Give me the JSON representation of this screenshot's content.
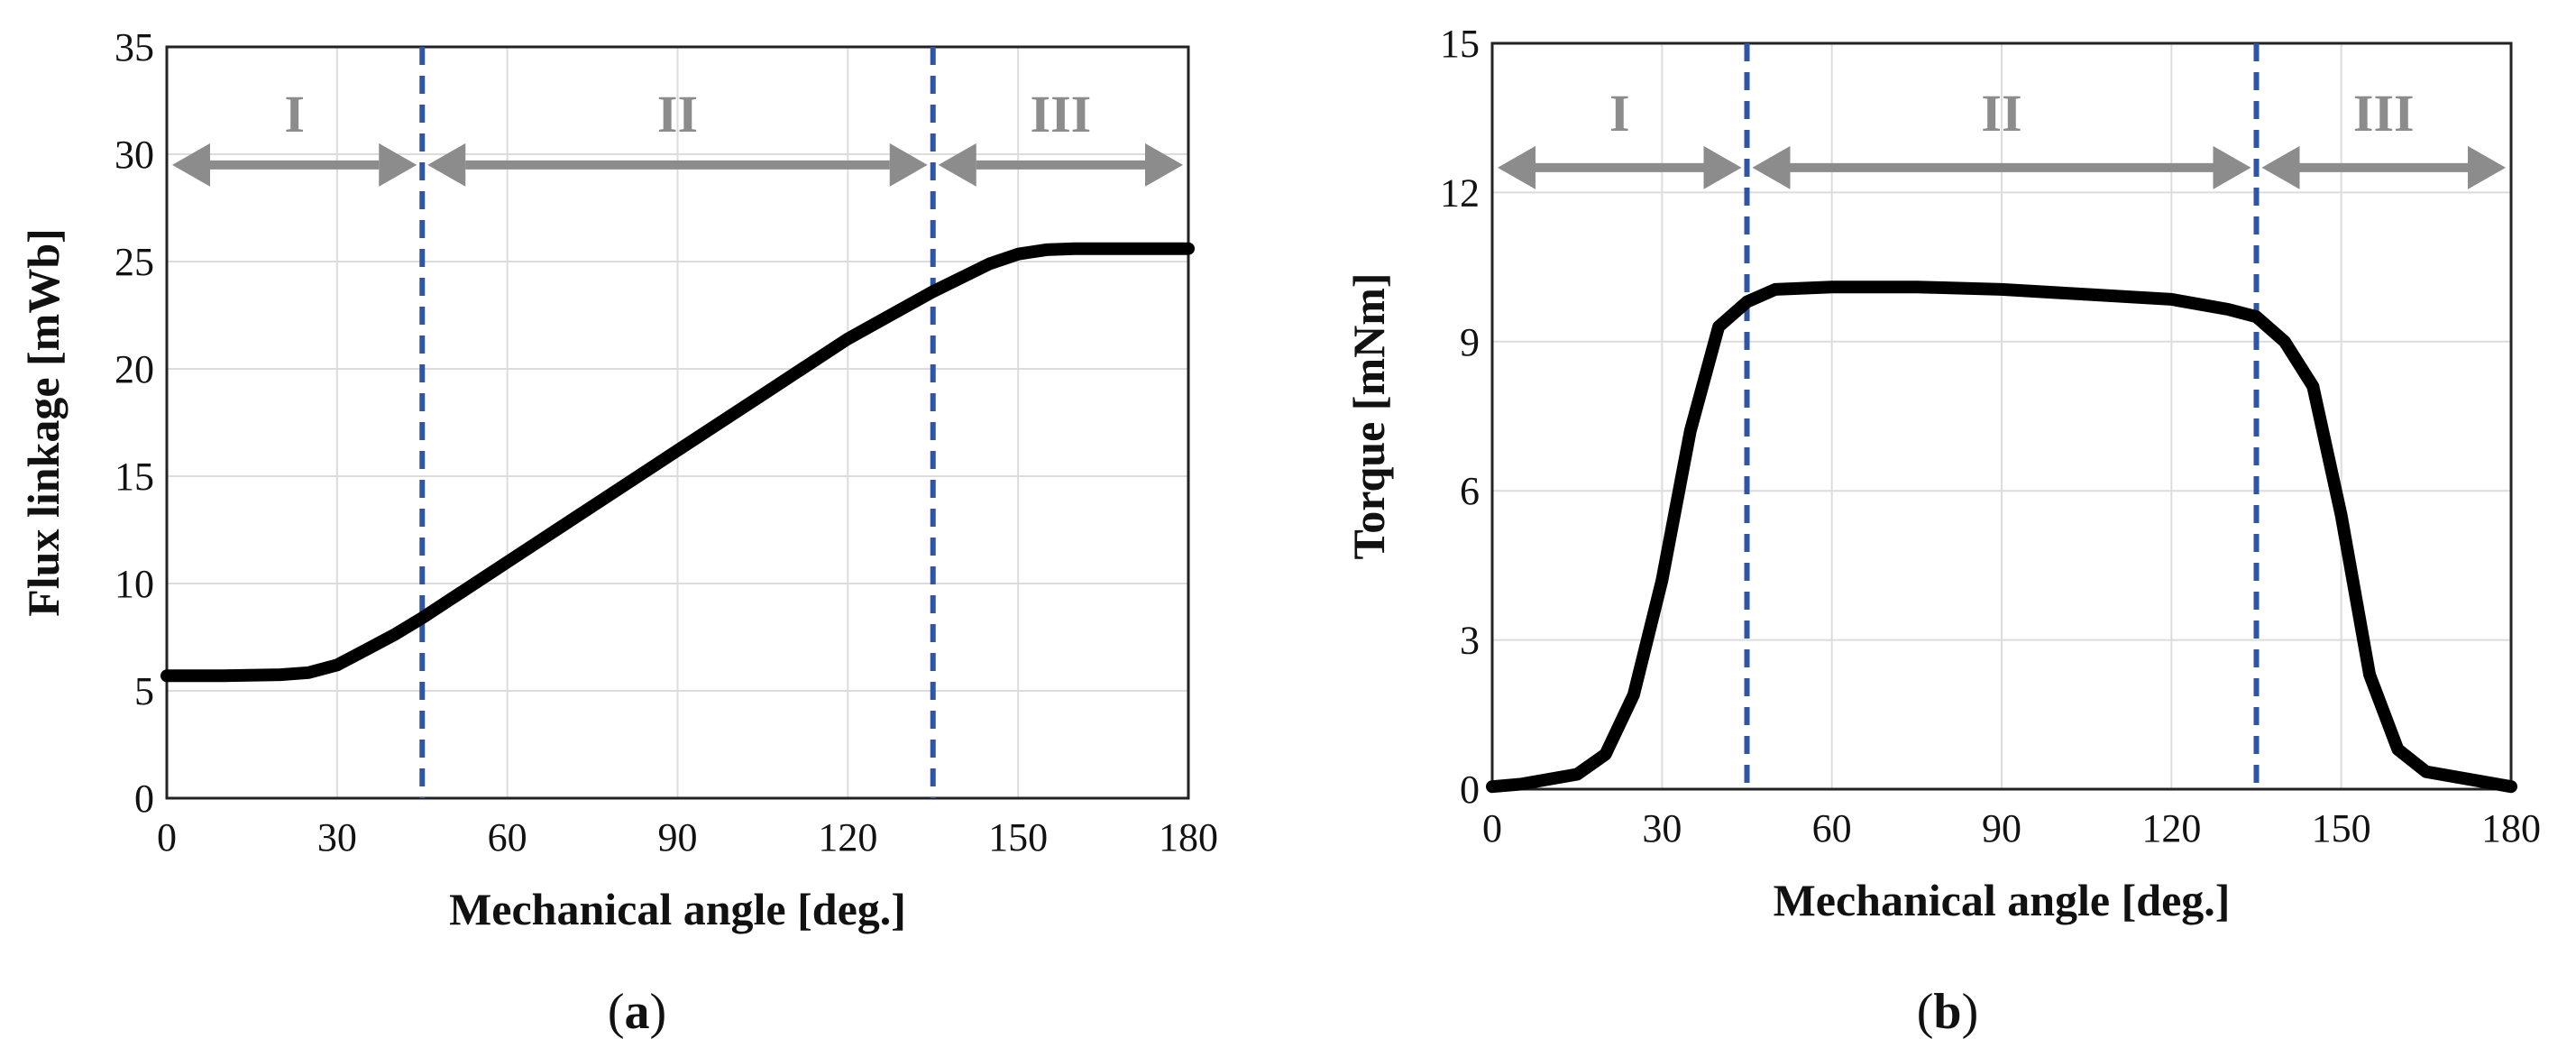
{
  "chart_data": [
    {
      "type": "line",
      "caption": "(a)",
      "caption_letter": "a",
      "xlabel": "Mechanical angle [deg.]",
      "ylabel": "Flux linkage [mWb]",
      "xlim": [
        0,
        180
      ],
      "ylim": [
        0,
        35
      ],
      "xticks": [
        0,
        30,
        60,
        90,
        120,
        150,
        180
      ],
      "yticks": [
        0,
        5,
        10,
        15,
        20,
        25,
        30,
        35
      ],
      "region_boundaries": [
        45,
        135
      ],
      "regions": [
        {
          "label": "I",
          "from": 0,
          "to": 45
        },
        {
          "label": "II",
          "from": 45,
          "to": 135
        },
        {
          "label": "III",
          "from": 135,
          "to": 180
        }
      ],
      "arrow_y": 29.5,
      "region_label_y": 31.9,
      "series": [
        {
          "name": "Flux linkage",
          "x": [
            0,
            10,
            20,
            25,
            30,
            35,
            40,
            45,
            60,
            75,
            90,
            105,
            120,
            135,
            145,
            150,
            155,
            160,
            170,
            180
          ],
          "y": [
            5.7,
            5.7,
            5.75,
            5.85,
            6.2,
            6.9,
            7.6,
            8.4,
            11.0,
            13.6,
            16.2,
            18.8,
            21.4,
            23.6,
            24.9,
            25.35,
            25.55,
            25.6,
            25.6,
            25.6
          ]
        }
      ]
    },
    {
      "type": "line",
      "caption": "(b)",
      "caption_letter": "b",
      "xlabel": "Mechanical angle [deg.]",
      "ylabel": "Torque [mNm]",
      "xlim": [
        0,
        180
      ],
      "ylim": [
        0,
        15
      ],
      "xticks": [
        0,
        30,
        60,
        90,
        120,
        150,
        180
      ],
      "yticks": [
        0,
        3,
        6,
        9,
        12,
        15
      ],
      "region_boundaries": [
        45,
        135
      ],
      "regions": [
        {
          "label": "I",
          "from": 0,
          "to": 45
        },
        {
          "label": "II",
          "from": 45,
          "to": 135
        },
        {
          "label": "III",
          "from": 135,
          "to": 180
        }
      ],
      "arrow_y": 12.5,
      "region_label_y": 13.6,
      "series": [
        {
          "name": "Torque",
          "x": [
            0,
            5,
            10,
            15,
            20,
            25,
            30,
            35,
            40,
            45,
            50,
            60,
            75,
            90,
            105,
            120,
            130,
            135,
            140,
            145,
            150,
            155,
            160,
            165,
            170,
            180
          ],
          "y": [
            0.05,
            0.1,
            0.2,
            0.3,
            0.7,
            1.9,
            4.2,
            7.2,
            9.3,
            9.8,
            10.05,
            10.1,
            10.1,
            10.05,
            9.95,
            9.85,
            9.65,
            9.5,
            9.0,
            8.1,
            5.5,
            2.3,
            0.8,
            0.35,
            0.25,
            0.05
          ]
        }
      ]
    }
  ]
}
